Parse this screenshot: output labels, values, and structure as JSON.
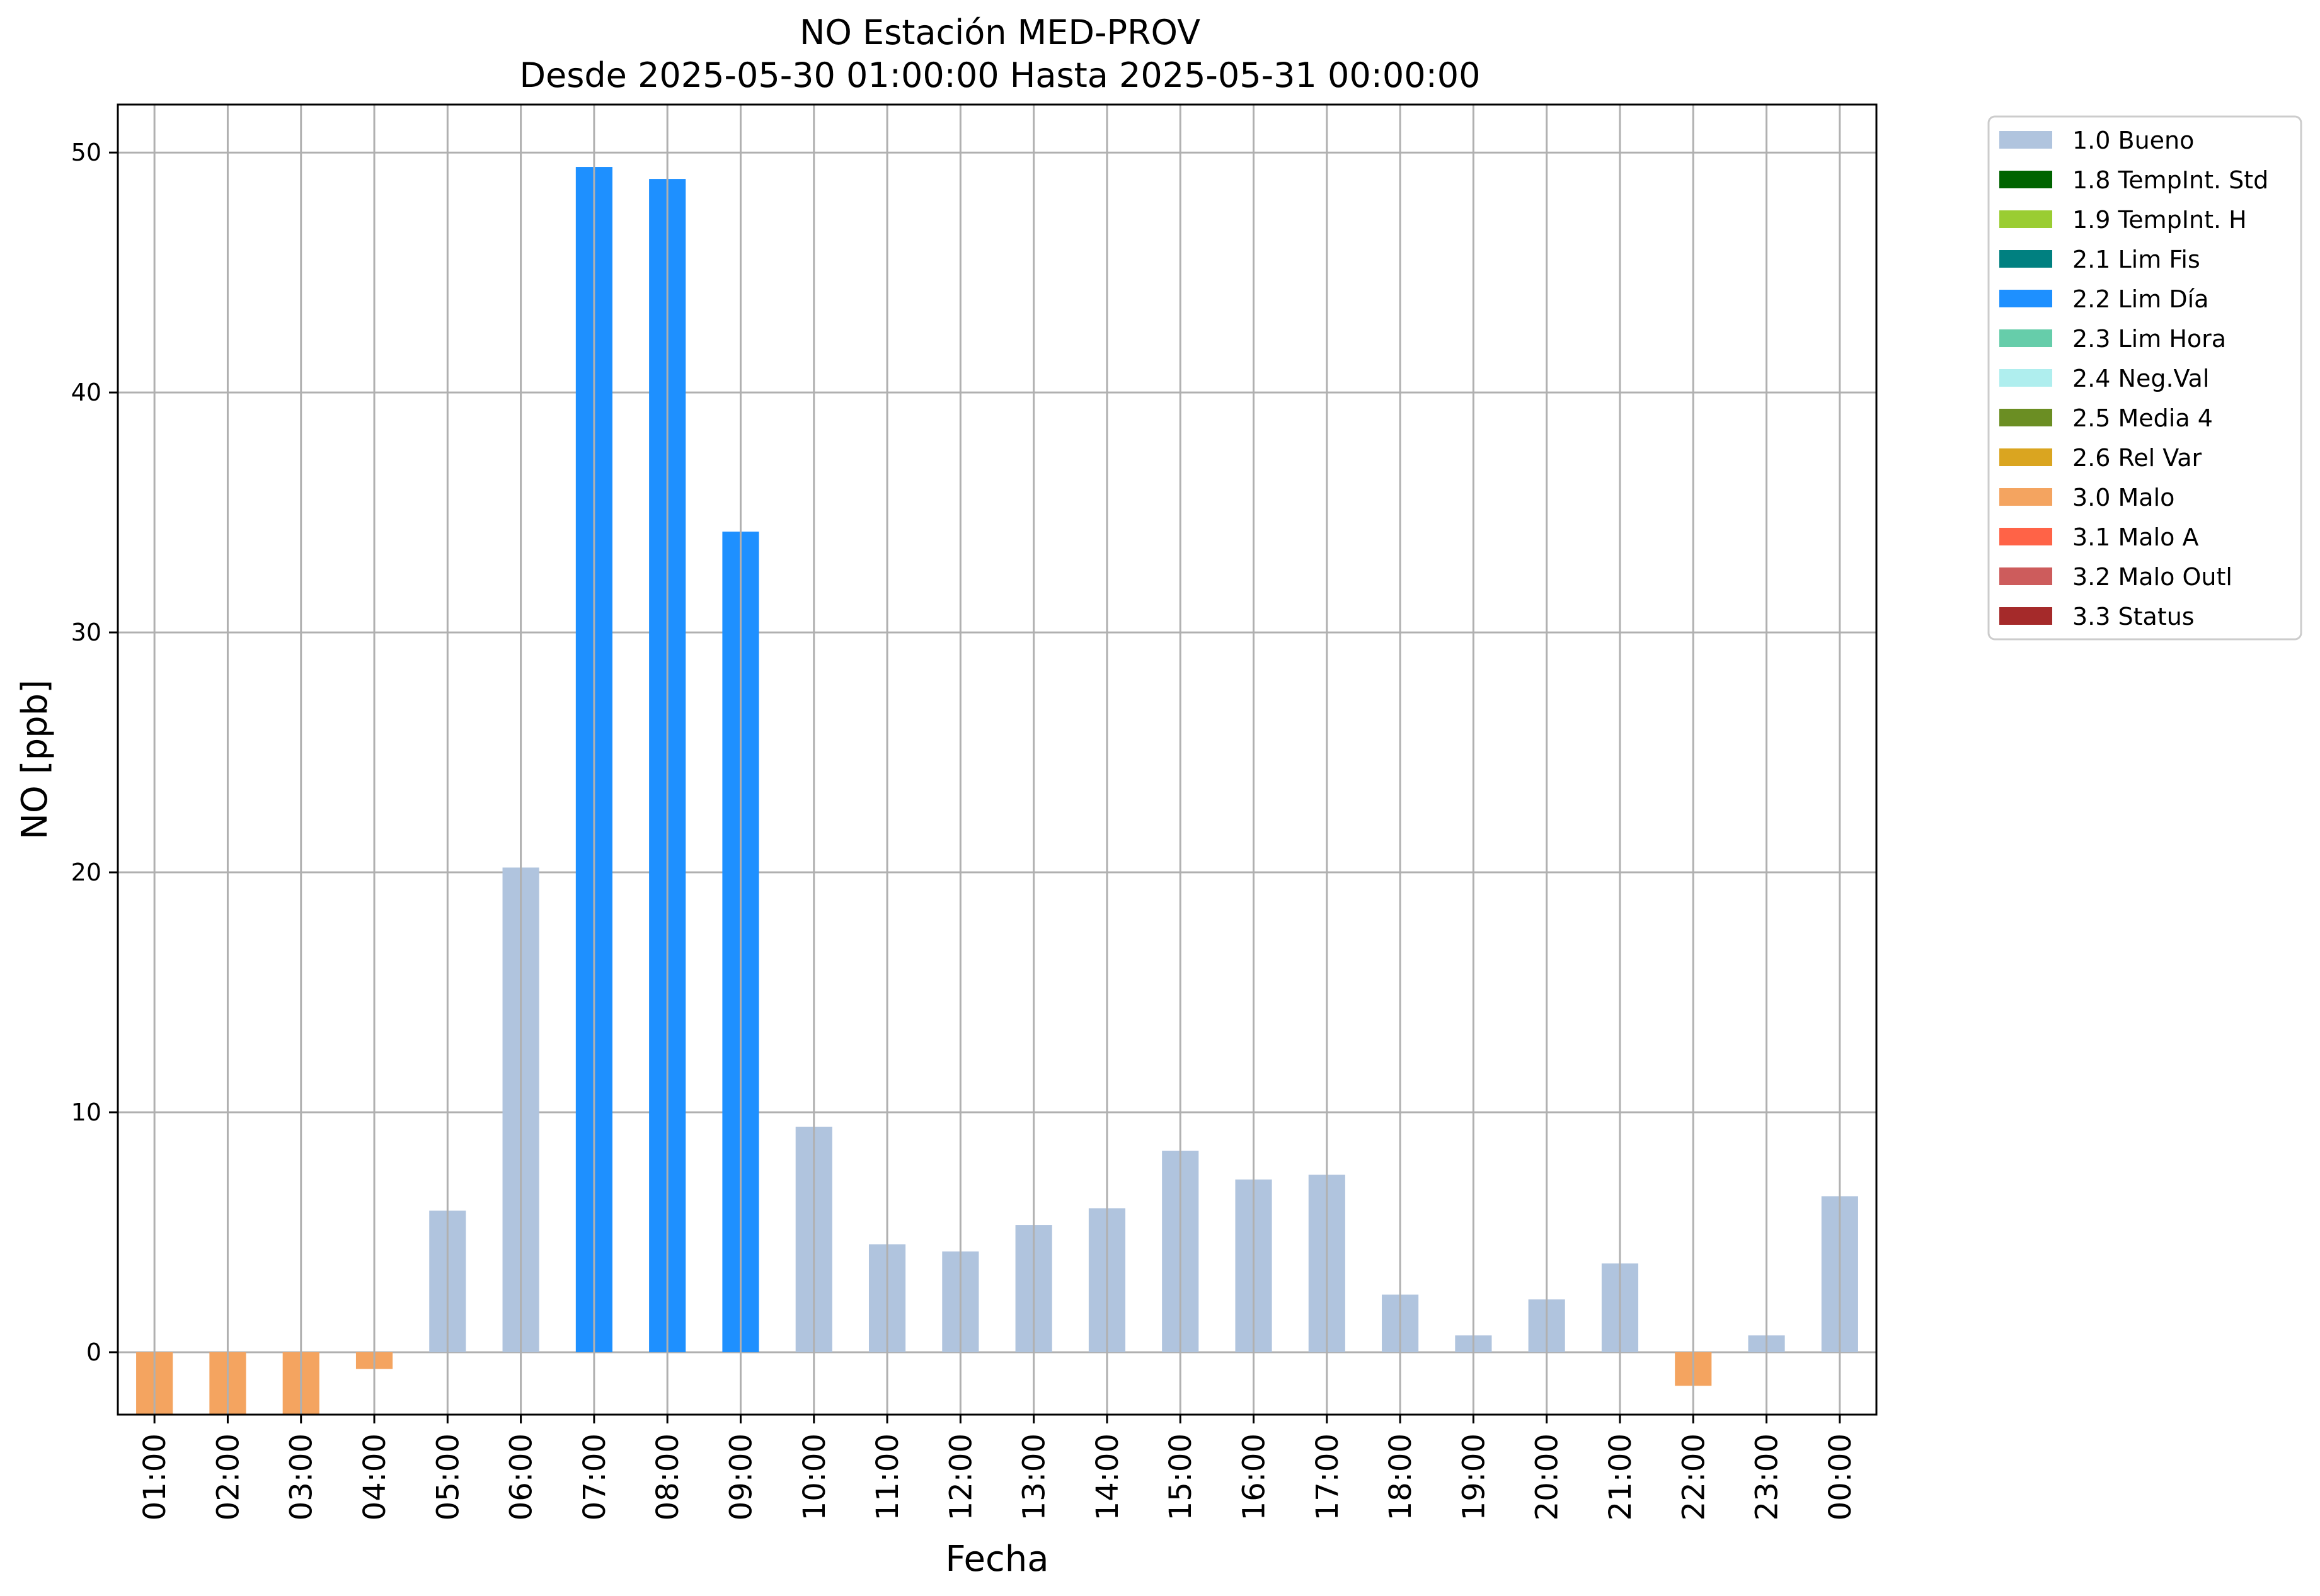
{
  "chart_data": {
    "type": "bar",
    "title": "NO Estación MED-PROV",
    "subtitle": "Desde 2025-05-30 01:00:00 Hasta 2025-05-31 00:00:00",
    "xlabel": "Fecha",
    "ylabel": "NO [ppb]",
    "ylim": [
      -2.6,
      52
    ],
    "yticks": [
      0,
      10,
      20,
      30,
      40,
      50
    ],
    "grid": true,
    "legend_position": "outside-top-right",
    "categories": [
      "01:00",
      "02:00",
      "03:00",
      "04:00",
      "05:00",
      "06:00",
      "07:00",
      "08:00",
      "09:00",
      "10:00",
      "11:00",
      "12:00",
      "13:00",
      "14:00",
      "15:00",
      "16:00",
      "17:00",
      "18:00",
      "19:00",
      "20:00",
      "21:00",
      "22:00",
      "23:00",
      "00:00"
    ],
    "values": [
      -2.6,
      -2.6,
      -2.6,
      -0.7,
      5.9,
      20.2,
      49.4,
      48.9,
      34.2,
      9.4,
      4.5,
      4.2,
      5.3,
      6.0,
      8.4,
      7.2,
      7.4,
      2.4,
      0.7,
      2.2,
      3.7,
      -1.4,
      0.7,
      6.5
    ],
    "flags": [
      "3.0 Malo",
      "3.0 Malo",
      "3.0 Malo",
      "3.0 Malo",
      "1.0 Bueno",
      "1.0 Bueno",
      "2.2 Lim Día",
      "2.2 Lim Día",
      "2.2 Lim Día",
      "1.0 Bueno",
      "1.0 Bueno",
      "1.0 Bueno",
      "1.0 Bueno",
      "1.0 Bueno",
      "1.0 Bueno",
      "1.0 Bueno",
      "1.0 Bueno",
      "1.0 Bueno",
      "1.0 Bueno",
      "1.0 Bueno",
      "1.0 Bueno",
      "3.0 Malo",
      "1.0 Bueno",
      "1.0 Bueno"
    ],
    "legend": [
      {
        "label": "1.0 Bueno",
        "color": "#b0c4de"
      },
      {
        "label": "1.8 TempInt. Std",
        "color": "#006400"
      },
      {
        "label": "1.9 TempInt. H",
        "color": "#9acd32"
      },
      {
        "label": "2.1 Lim Fis",
        "color": "#008080"
      },
      {
        "label": "2.2 Lim Día",
        "color": "#1e90ff"
      },
      {
        "label": "2.3 Lim Hora",
        "color": "#66cdaa"
      },
      {
        "label": "2.4 Neg.Val",
        "color": "#afeeee"
      },
      {
        "label": "2.5 Media 4",
        "color": "#6b8e23"
      },
      {
        "label": "2.6 Rel Var",
        "color": "#daa520"
      },
      {
        "label": "3.0 Malo",
        "color": "#f4a460"
      },
      {
        "label": "3.1 Malo A",
        "color": "#ff6347"
      },
      {
        "label": "3.2 Malo Outl",
        "color": "#cd5c5c"
      },
      {
        "label": "3.3 Status",
        "color": "#a52a2a"
      }
    ]
  }
}
